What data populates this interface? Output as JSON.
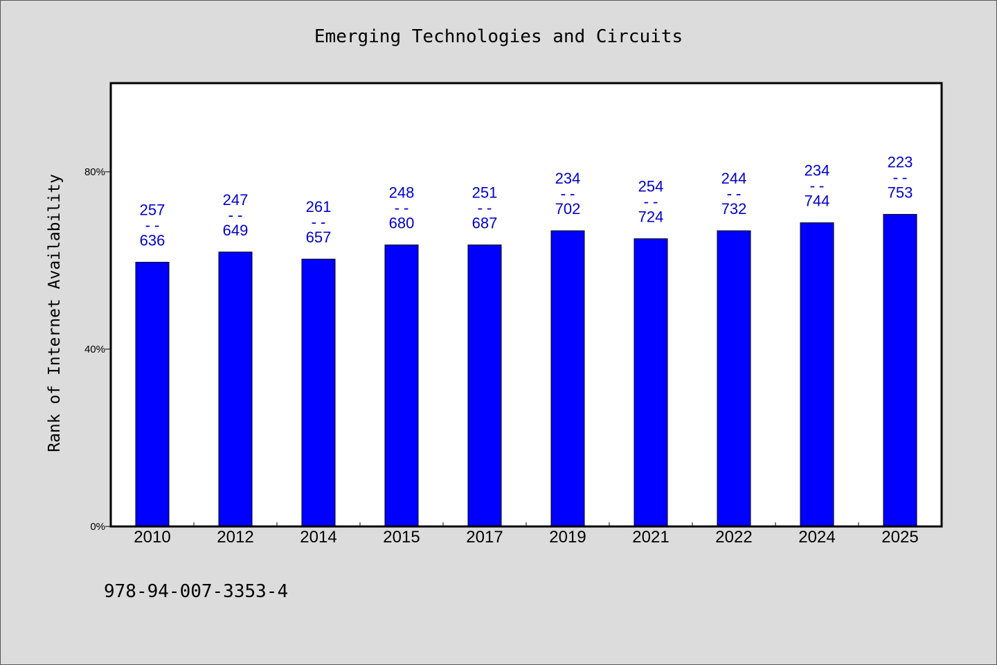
{
  "page": {
    "background": "#dcdcdc"
  },
  "chart_data": {
    "type": "bar",
    "title": "Emerging Technologies and Circuits",
    "xlabel": "",
    "ylabel": "Rank of Internet Availability",
    "categories": [
      "2010",
      "2012",
      "2014",
      "2015",
      "2017",
      "2019",
      "2021",
      "2022",
      "2024",
      "2025"
    ],
    "series": [
      {
        "values": [
          59.6,
          61.9,
          60.3,
          63.5,
          63.5,
          66.7,
          64.9,
          66.7,
          68.5,
          70.4
        ],
        "color": "#0000ff"
      }
    ],
    "bar_labels": [
      [
        "257",
        "--",
        "636"
      ],
      [
        "247",
        "--",
        "649"
      ],
      [
        "261",
        "--",
        "657"
      ],
      [
        "248",
        "--",
        "680"
      ],
      [
        "251",
        "--",
        "687"
      ],
      [
        "234",
        "--",
        "702"
      ],
      [
        "254",
        "--",
        "724"
      ],
      [
        "244",
        "--",
        "732"
      ],
      [
        "234",
        "--",
        "744"
      ],
      [
        "223",
        "--",
        "753"
      ]
    ],
    "bar_label_color": "#0000cc",
    "ylim": [
      0,
      100
    ],
    "yticks": [
      0,
      40,
      80
    ],
    "ytick_labels": [
      "0%",
      "40%",
      "80%"
    ],
    "grid": false,
    "show_legend": false
  },
  "footer": {
    "text": "978-94-007-3353-4"
  }
}
